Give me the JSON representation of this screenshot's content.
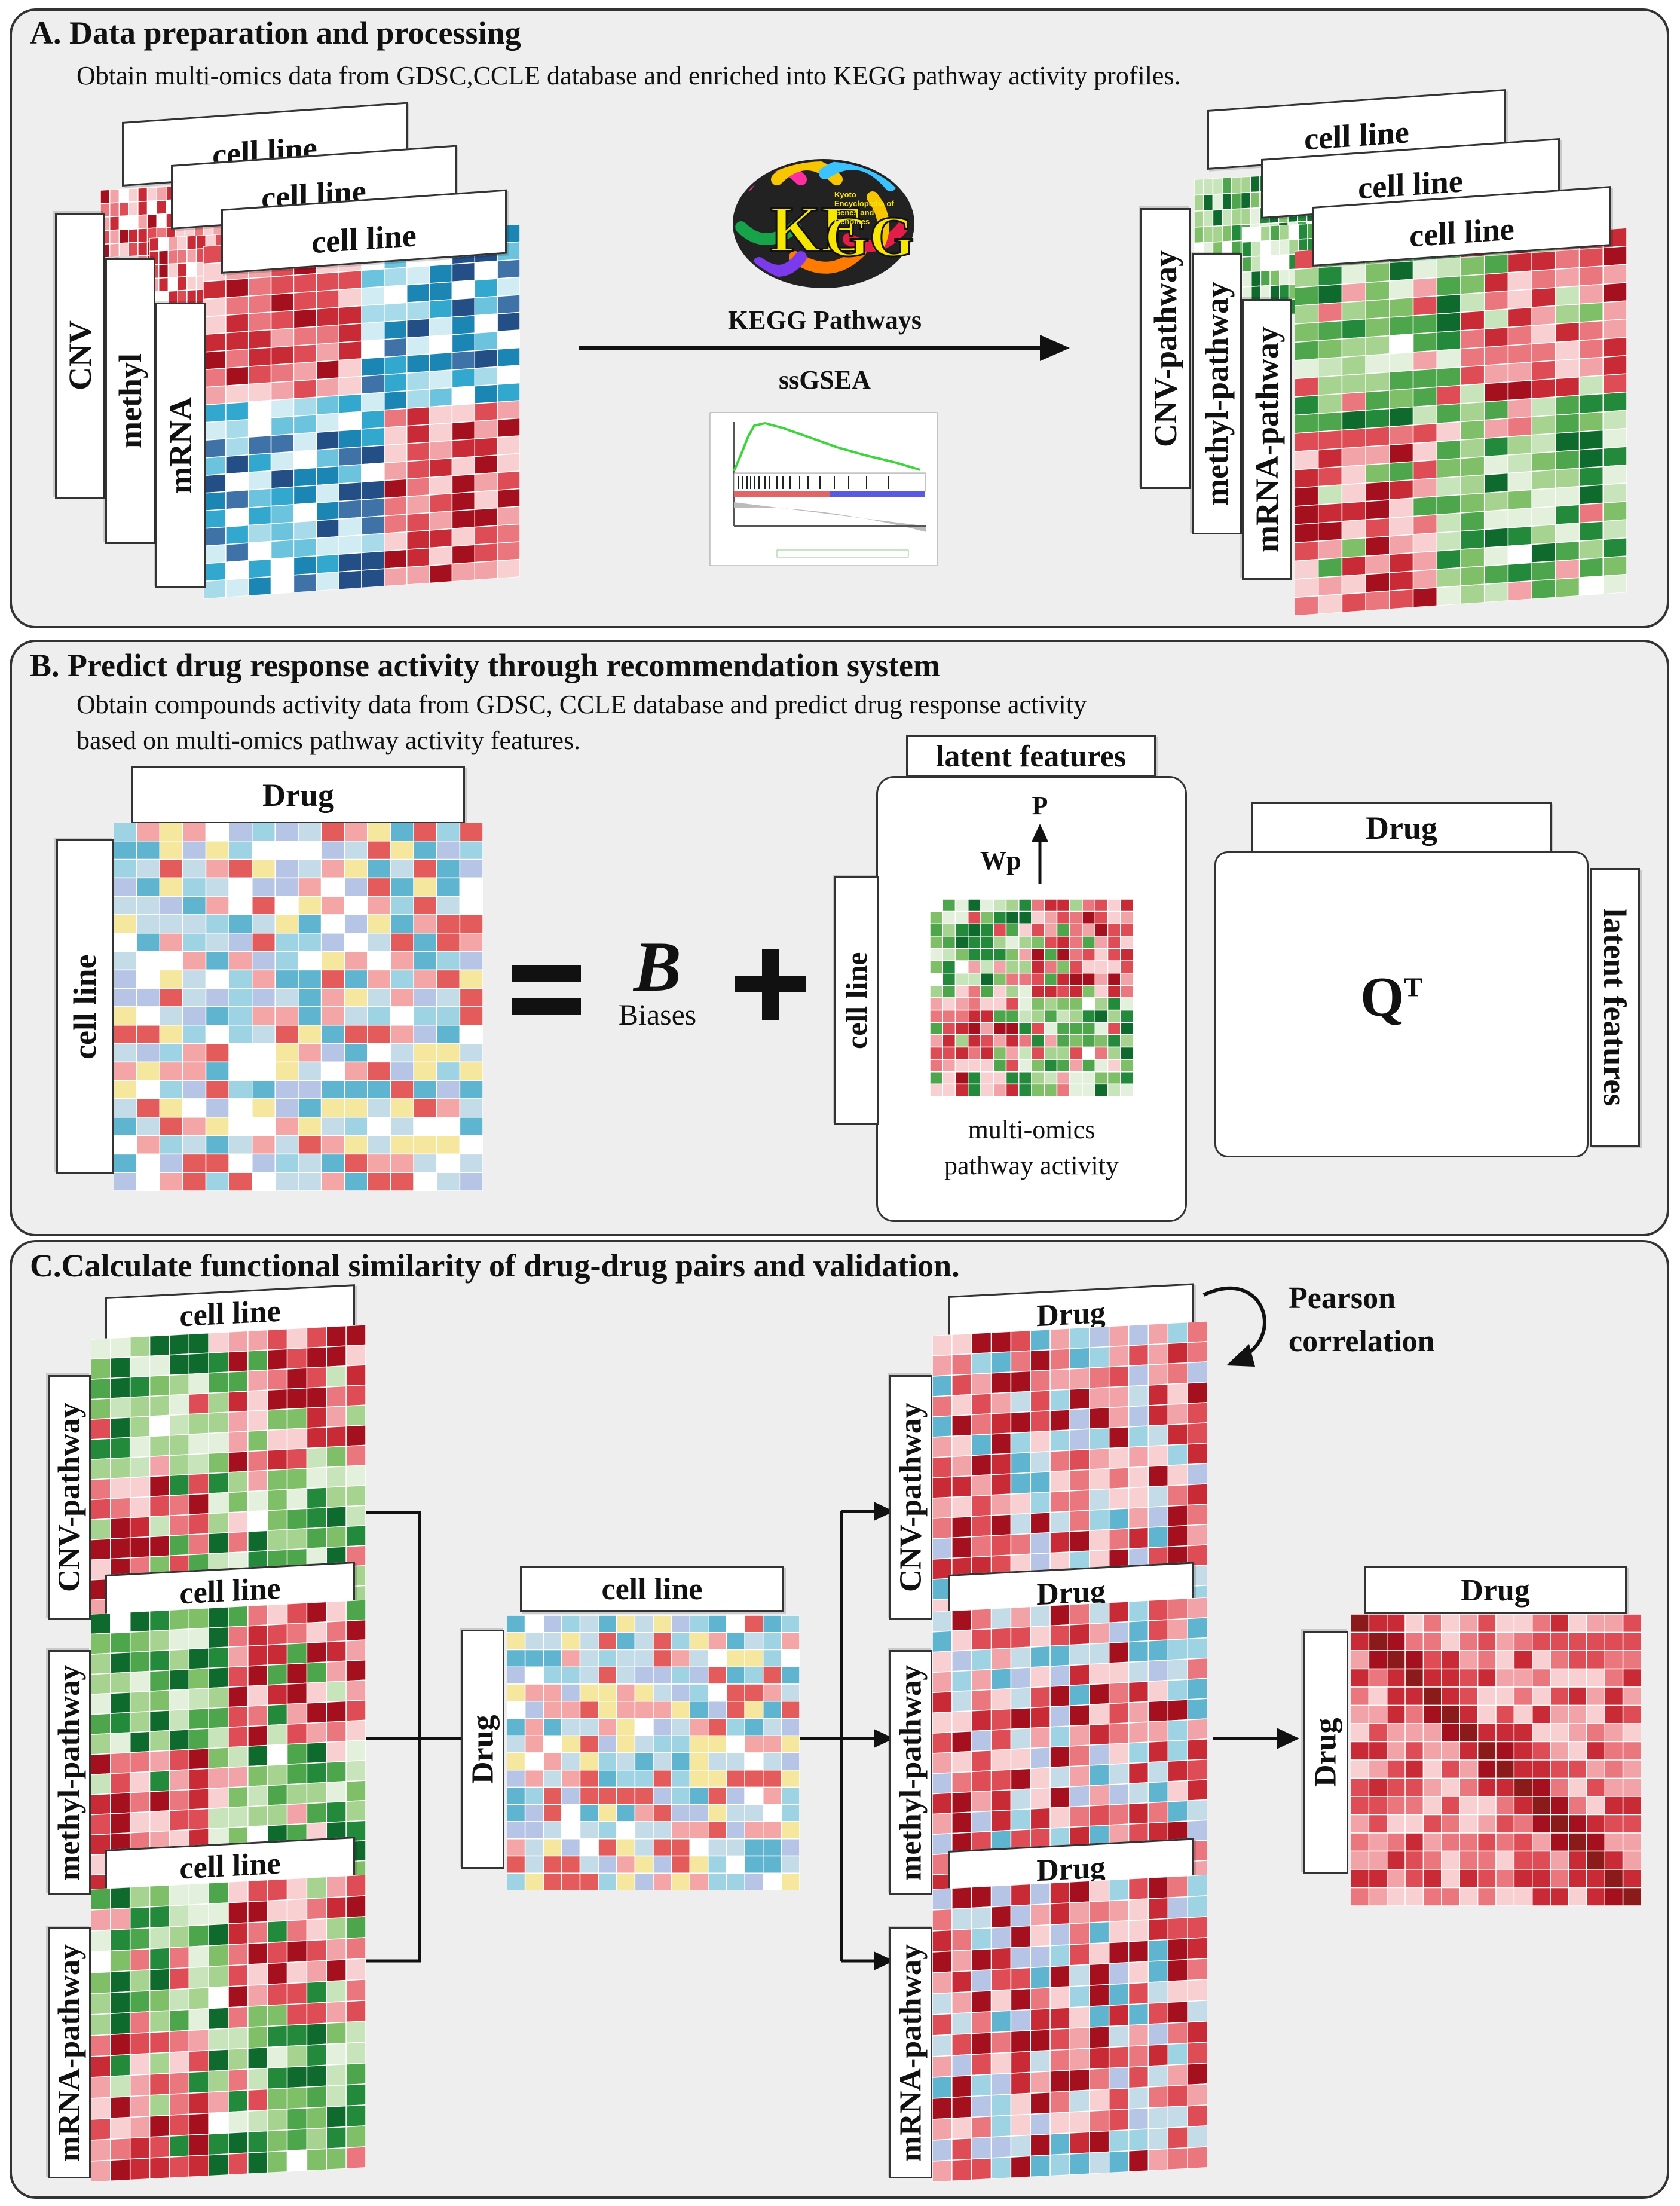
{
  "panels": {
    "a": {
      "title": "A. Data preparation and processing",
      "desc": "Obtain multi-omics data from GDSC,CCLE database and enriched into KEGG pathway activity profiles.",
      "input_stack": {
        "top_labels": [
          "cell line",
          "cell line",
          "cell line"
        ],
        "side_labels": [
          "CNV",
          "methyl",
          "mRNA"
        ]
      },
      "kegg": {
        "logo_text": "KEGG",
        "logo_caption": "Kyoto Encyclopedia of Genes and Genomes",
        "pathways_label": "KEGG Pathways",
        "method_label": "ssGSEA"
      },
      "output_stack": {
        "top_labels": [
          "cell line",
          "cell line",
          "cell line"
        ],
        "side_labels": [
          "CNV-pathway",
          "methyl-pathway",
          "mRNA-pathway"
        ]
      }
    },
    "b": {
      "title": "B. Predict drug response activity through recommendation system",
      "desc_line1": "Obtain compounds activity data from GDSC, CCLE database and predict drug response activity",
      "desc_line2": "based on multi-omics pathway activity features.",
      "response_matrix": {
        "top_label": "Drug",
        "side_label": "cell line"
      },
      "equals": "=",
      "bias": {
        "symbol": "B",
        "label": "Biases"
      },
      "plus": "+",
      "latent": {
        "top_label": "latent features",
        "p_label": "P",
        "wp_label": "Wp",
        "side_label": "cell line",
        "caption_line1": "multi-omics",
        "caption_line2": "pathway activity"
      },
      "qt": {
        "top_label": "Drug",
        "side_label": "latent features",
        "symbol": "Q",
        "superscript": "T"
      }
    },
    "c": {
      "title": "C.Calculate functional similarity of drug-drug pairs and validation.",
      "pathway_stack": {
        "top_labels": [
          "cell line",
          "cell line",
          "cell line"
        ],
        "side_labels": [
          "CNV-pathway",
          "methyl-pathway",
          "mRNA-pathway"
        ]
      },
      "drug_cell": {
        "top_label": "cell line",
        "side_label": "Drug"
      },
      "drug_stack": {
        "top_labels": [
          "Drug",
          "Drug",
          "Drug"
        ],
        "side_labels": [
          "CNV-pathway",
          "methyl-pathway",
          "mRNA-pathway"
        ]
      },
      "pearson_line1": "Pearson",
      "pearson_line2": "correlation",
      "similarity": {
        "top_label": "Drug",
        "side_label": "Drug"
      }
    }
  },
  "palettes": {
    "red": [
      "#ffffff",
      "#f8d0d2",
      "#f2a3a7",
      "#e9777d",
      "#de4d55",
      "#c92b36",
      "#a4101e",
      "#f7e0e1"
    ],
    "blue": [
      "#ffffff",
      "#d2ecf4",
      "#a8dbea",
      "#6cc3dd",
      "#33a8cf",
      "#1b86b4",
      "#3f73a8",
      "#234f86"
    ],
    "green": [
      "#ffffff",
      "#e3f1dc",
      "#c8e4bb",
      "#a6d38f",
      "#7fbf68",
      "#4da54c",
      "#238a3c",
      "#0f6a2d"
    ],
    "drug": [
      "#ffffff",
      "#f4a6a6",
      "#e45b5b",
      "#f6e79f",
      "#9ed3e3",
      "#5fb5cf",
      "#b6c5e6",
      "#c4dbe8"
    ]
  }
}
